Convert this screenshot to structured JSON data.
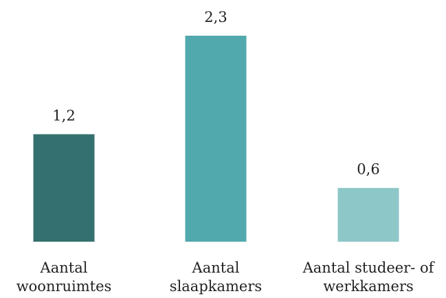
{
  "chart_data": {
    "type": "bar",
    "title": "",
    "xlabel": "",
    "ylabel": "",
    "ylim": [
      0,
      2.3
    ],
    "grid": false,
    "legend": "none",
    "categories": [
      [
        "Aantal",
        "woonruimtes"
      ],
      [
        "Aantal",
        "slaapkamers"
      ],
      [
        "Aantal studeer- of",
        "werkkamers"
      ]
    ],
    "values": [
      1.2,
      2.3,
      0.6
    ],
    "value_labels": [
      "1,2",
      "2,3",
      "0,6"
    ],
    "colors": [
      "#357070",
      "#52a9ad",
      "#8dc7c8"
    ]
  }
}
